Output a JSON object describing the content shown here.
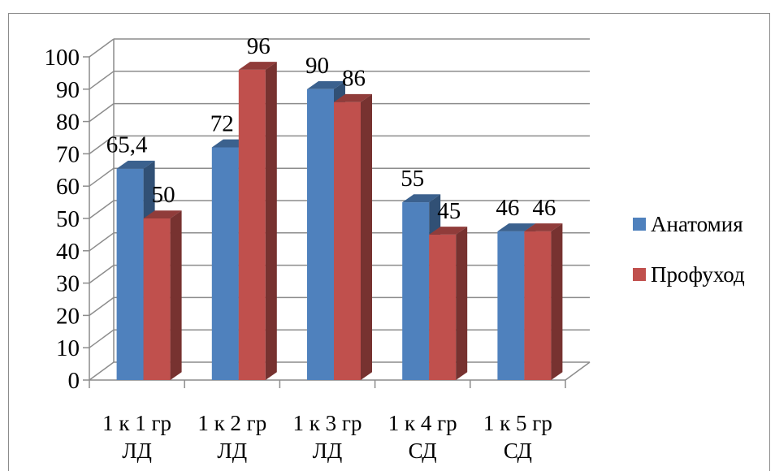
{
  "chart_data": {
    "type": "bar",
    "title": "",
    "categories": [
      "1 к 1 гр ЛД",
      "1 к 2 гр ЛД",
      "1 к 3 гр ЛД",
      "1 к 4 гр СД",
      "1 к 5 гр СД"
    ],
    "category_lines": [
      [
        "1 к 1 гр",
        "ЛД"
      ],
      [
        "1 к 2 гр",
        "ЛД"
      ],
      [
        "1 к 3 гр",
        "ЛД"
      ],
      [
        "1 к 4 гр",
        "СД"
      ],
      [
        "1 к 5 гр",
        "СД"
      ]
    ],
    "series": [
      {
        "name": "Анатомия",
        "values": [
          65.4,
          72,
          90,
          55,
          46
        ],
        "labels": [
          "65,4",
          "72",
          "90",
          "55",
          "46"
        ],
        "color": "#4f81bd"
      },
      {
        "name": "Профуход",
        "values": [
          50,
          96,
          86,
          45,
          46
        ],
        "labels": [
          "50",
          "96",
          "86",
          "45",
          "46"
        ],
        "color": "#c0504d"
      }
    ],
    "ylim": [
      0,
      100
    ],
    "yticks": [
      "0",
      "10",
      "20",
      "30",
      "40",
      "50",
      "60",
      "70",
      "80",
      "90",
      "100"
    ],
    "grid": true,
    "legend_position": "right",
    "style": "3d-clustered-column"
  }
}
